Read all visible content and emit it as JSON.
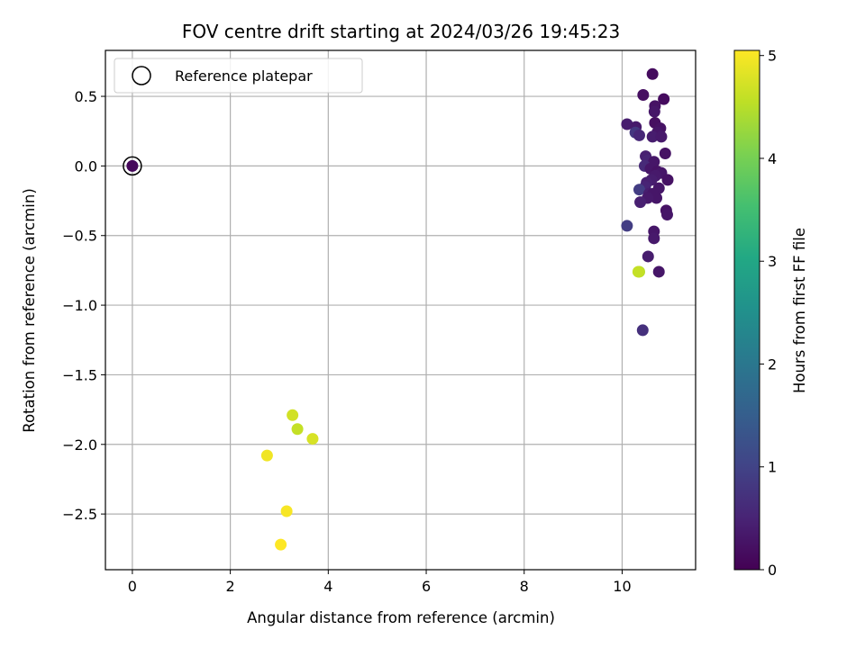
{
  "chart_data": {
    "type": "scatter",
    "title": "FOV centre drift starting at 2024/03/26 19:45:23",
    "xlabel": "Angular distance from reference (arcmin)",
    "ylabel": "Rotation from reference (arcmin)",
    "xlim": [
      -0.55,
      11.5
    ],
    "ylim": [
      -2.9,
      0.83
    ],
    "xticks": [
      0,
      2,
      4,
      6,
      8,
      10
    ],
    "yticks": [
      0.5,
      0.0,
      -0.5,
      -1.0,
      -1.5,
      -2.0,
      -2.5
    ],
    "xtick_labels": [
      "0",
      "2",
      "4",
      "6",
      "8",
      "10"
    ],
    "ytick_labels": [
      "0.5",
      "0.0",
      "−0.5",
      "−1.0",
      "−1.5",
      "−2.0",
      "−2.5"
    ],
    "grid": true,
    "legend": {
      "position": "top-left",
      "entries": [
        "Reference platepar"
      ]
    },
    "reference_point": {
      "x": 0.0,
      "y": 0.0,
      "label": "Reference platepar"
    },
    "colorbar": {
      "label": "Hours from first FF file",
      "min": 0,
      "max": 5.05,
      "ticks": [
        0,
        1,
        2,
        3,
        4,
        5
      ],
      "tick_labels": [
        "0",
        "1",
        "2",
        "3",
        "4",
        "5"
      ],
      "colormap": "viridis"
    },
    "points": [
      {
        "x": 0.0,
        "y": 0.0,
        "hours": 0.1
      },
      {
        "x": 10.62,
        "y": 0.66,
        "hours": 0.15
      },
      {
        "x": 10.43,
        "y": 0.51,
        "hours": 0.2
      },
      {
        "x": 10.85,
        "y": 0.48,
        "hours": 0.15
      },
      {
        "x": 10.67,
        "y": 0.43,
        "hours": 0.25
      },
      {
        "x": 10.66,
        "y": 0.39,
        "hours": 0.3
      },
      {
        "x": 10.1,
        "y": 0.3,
        "hours": 0.4
      },
      {
        "x": 10.28,
        "y": 0.28,
        "hours": 0.35
      },
      {
        "x": 10.67,
        "y": 0.31,
        "hours": 0.2
      },
      {
        "x": 10.78,
        "y": 0.27,
        "hours": 0.25
      },
      {
        "x": 10.27,
        "y": 0.24,
        "hours": 0.8
      },
      {
        "x": 10.35,
        "y": 0.22,
        "hours": 0.55
      },
      {
        "x": 10.72,
        "y": 0.24,
        "hours": 0.3
      },
      {
        "x": 10.62,
        "y": 0.21,
        "hours": 0.4
      },
      {
        "x": 10.8,
        "y": 0.21,
        "hours": 0.35
      },
      {
        "x": 10.88,
        "y": 0.09,
        "hours": 0.25
      },
      {
        "x": 10.48,
        "y": 0.07,
        "hours": 0.45
      },
      {
        "x": 10.52,
        "y": 0.04,
        "hours": 0.5
      },
      {
        "x": 10.65,
        "y": 0.03,
        "hours": 0.3
      },
      {
        "x": 10.46,
        "y": 0.0,
        "hours": 0.6
      },
      {
        "x": 10.58,
        "y": -0.02,
        "hours": 0.3
      },
      {
        "x": 10.72,
        "y": -0.04,
        "hours": 0.25
      },
      {
        "x": 10.8,
        "y": -0.05,
        "hours": 0.3
      },
      {
        "x": 10.68,
        "y": -0.07,
        "hours": 0.35
      },
      {
        "x": 10.6,
        "y": -0.1,
        "hours": 0.4
      },
      {
        "x": 10.93,
        "y": -0.1,
        "hours": 0.25
      },
      {
        "x": 10.5,
        "y": -0.12,
        "hours": 0.45
      },
      {
        "x": 10.47,
        "y": -0.15,
        "hours": 0.5
      },
      {
        "x": 10.75,
        "y": -0.16,
        "hours": 0.3
      },
      {
        "x": 10.35,
        "y": -0.17,
        "hours": 0.9
      },
      {
        "x": 10.55,
        "y": -0.2,
        "hours": 0.4
      },
      {
        "x": 10.63,
        "y": -0.2,
        "hours": 0.3
      },
      {
        "x": 10.7,
        "y": -0.23,
        "hours": 0.3
      },
      {
        "x": 10.52,
        "y": -0.23,
        "hours": 0.35
      },
      {
        "x": 10.37,
        "y": -0.26,
        "hours": 0.45
      },
      {
        "x": 10.9,
        "y": -0.32,
        "hours": 0.25
      },
      {
        "x": 10.92,
        "y": -0.35,
        "hours": 0.3
      },
      {
        "x": 10.1,
        "y": -0.43,
        "hours": 0.9
      },
      {
        "x": 10.65,
        "y": -0.47,
        "hours": 0.3
      },
      {
        "x": 10.65,
        "y": -0.52,
        "hours": 0.35
      },
      {
        "x": 10.53,
        "y": -0.65,
        "hours": 0.4
      },
      {
        "x": 10.35,
        "y": -0.76,
        "hours": 4.5
      },
      {
        "x": 10.33,
        "y": -0.76,
        "hours": 4.6
      },
      {
        "x": 10.75,
        "y": -0.76,
        "hours": 0.3
      },
      {
        "x": 10.42,
        "y": -1.18,
        "hours": 0.7
      },
      {
        "x": 3.27,
        "y": -1.79,
        "hours": 4.7
      },
      {
        "x": 3.37,
        "y": -1.89,
        "hours": 4.6
      },
      {
        "x": 3.68,
        "y": -1.96,
        "hours": 4.75
      },
      {
        "x": 2.75,
        "y": -2.08,
        "hours": 4.95
      },
      {
        "x": 3.15,
        "y": -2.48,
        "hours": 5.0
      },
      {
        "x": 3.03,
        "y": -2.72,
        "hours": 5.05
      }
    ]
  }
}
